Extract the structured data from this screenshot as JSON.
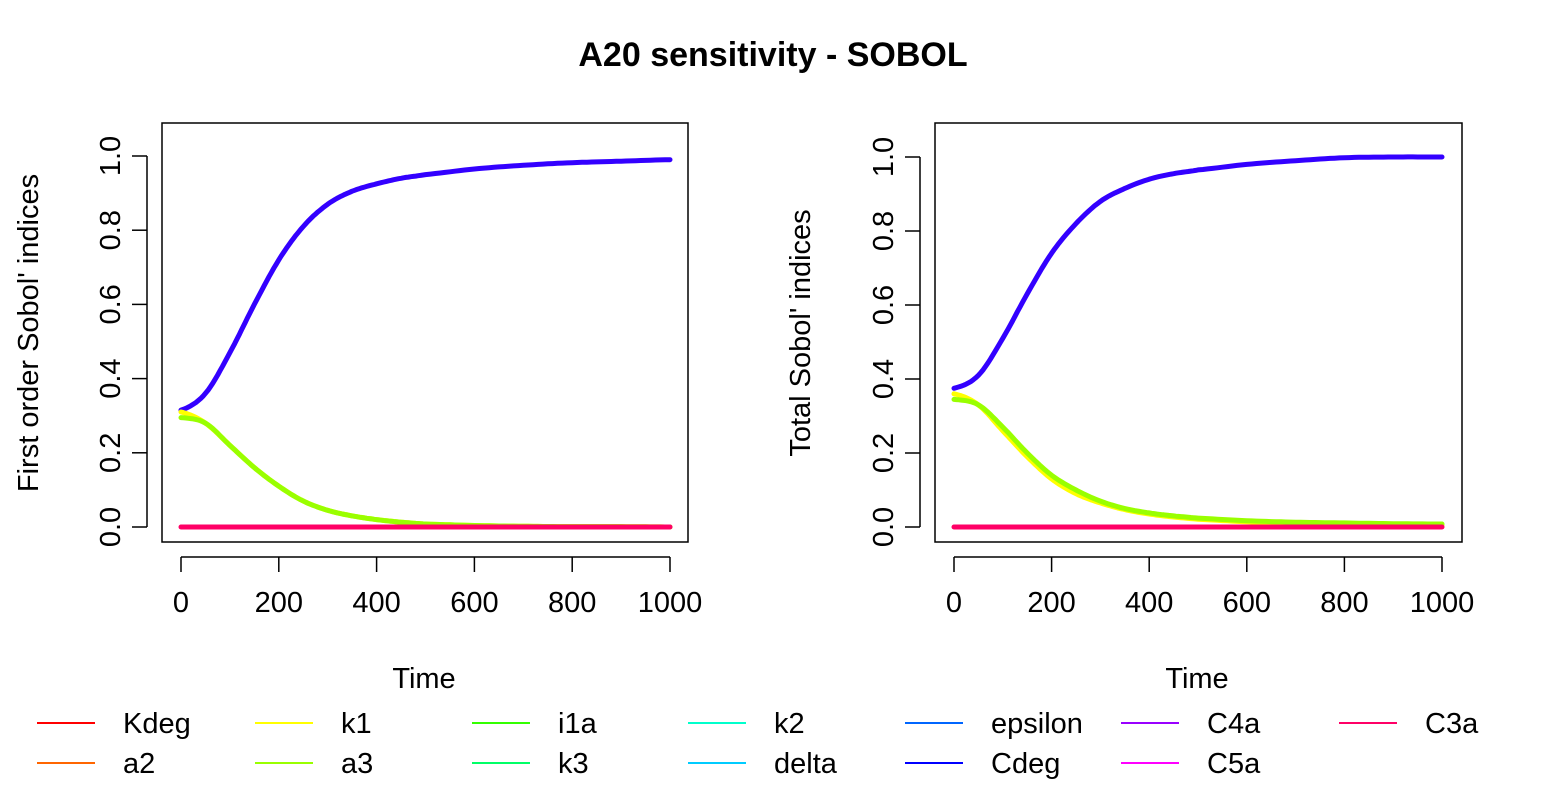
{
  "title": "A20 sensitivity - SOBOL",
  "chart_data": [
    {
      "type": "line",
      "title": "",
      "xlabel": "Time",
      "ylabel": "First order Sobol' indices",
      "xlim": [
        0,
        1000
      ],
      "ylim": [
        0,
        1.0
      ],
      "xticks": [
        "0",
        "200",
        "400",
        "600",
        "800",
        "1000"
      ],
      "yticks": [
        "0.0",
        "0.2",
        "0.4",
        "0.6",
        "0.8",
        "1.0"
      ],
      "x": [
        0,
        50,
        100,
        150,
        200,
        250,
        300,
        350,
        400,
        450,
        500,
        600,
        700,
        800,
        900,
        1000
      ],
      "series": [
        {
          "name": "Cdeg",
          "color": "#3300ff",
          "values": [
            0.315,
            0.36,
            0.47,
            0.6,
            0.72,
            0.81,
            0.87,
            0.905,
            0.925,
            0.94,
            0.95,
            0.965,
            0.975,
            0.982,
            0.986,
            0.99
          ]
        },
        {
          "name": "k1",
          "color": "#ffff00",
          "values": [
            0.31,
            0.28,
            0.22,
            0.16,
            0.11,
            0.07,
            0.045,
            0.03,
            0.02,
            0.013,
            0.008,
            0.004,
            0.002,
            0.001,
            0.001,
            0.0
          ]
        },
        {
          "name": "a3",
          "color": "#99ff00",
          "values": [
            0.295,
            0.28,
            0.22,
            0.16,
            0.11,
            0.07,
            0.045,
            0.03,
            0.02,
            0.013,
            0.008,
            0.004,
            0.002,
            0.001,
            0.001,
            0.0
          ]
        },
        {
          "name": "C3a",
          "color": "#ff0066",
          "values": [
            0,
            0,
            0,
            0,
            0,
            0,
            0,
            0,
            0,
            0,
            0,
            0,
            0,
            0,
            0,
            0
          ]
        }
      ]
    },
    {
      "type": "line",
      "title": "",
      "xlabel": "Time",
      "ylabel": "Total Sobol' indices",
      "xlim": [
        0,
        1000
      ],
      "ylim": [
        0,
        1.0
      ],
      "xticks": [
        "0",
        "200",
        "400",
        "600",
        "800",
        "1000"
      ],
      "yticks": [
        "0.0",
        "0.2",
        "0.4",
        "0.6",
        "0.8",
        "1.0"
      ],
      "x": [
        0,
        50,
        100,
        150,
        200,
        250,
        300,
        350,
        400,
        450,
        500,
        600,
        700,
        800,
        900,
        1000
      ],
      "series": [
        {
          "name": "Cdeg",
          "color": "#3300ff",
          "values": [
            0.375,
            0.41,
            0.51,
            0.63,
            0.74,
            0.82,
            0.88,
            0.915,
            0.94,
            0.955,
            0.965,
            0.98,
            0.99,
            0.998,
            1.0,
            1.0
          ]
        },
        {
          "name": "k1",
          "color": "#ffff00",
          "values": [
            0.36,
            0.33,
            0.26,
            0.19,
            0.13,
            0.09,
            0.065,
            0.047,
            0.035,
            0.027,
            0.021,
            0.014,
            0.01,
            0.008,
            0.006,
            0.005
          ]
        },
        {
          "name": "a3",
          "color": "#99ff00",
          "values": [
            0.345,
            0.33,
            0.27,
            0.2,
            0.14,
            0.1,
            0.07,
            0.05,
            0.038,
            0.03,
            0.024,
            0.017,
            0.013,
            0.011,
            0.009,
            0.008
          ]
        },
        {
          "name": "C3a",
          "color": "#ff0066",
          "values": [
            0,
            0,
            0,
            0,
            0,
            0,
            0,
            0,
            0,
            0,
            0,
            0,
            0,
            0,
            0,
            0
          ]
        }
      ]
    }
  ],
  "legend": {
    "items": [
      {
        "name": "Kdeg",
        "color": "#ff0000"
      },
      {
        "name": "a2",
        "color": "#ff6600"
      },
      {
        "name": "k1",
        "color": "#ffff00"
      },
      {
        "name": "a3",
        "color": "#99ff00"
      },
      {
        "name": "i1a",
        "color": "#33ff00"
      },
      {
        "name": "k3",
        "color": "#00ff66"
      },
      {
        "name": "k2",
        "color": "#00ffcc"
      },
      {
        "name": "delta",
        "color": "#00ccff"
      },
      {
        "name": "epsilon",
        "color": "#0066ff"
      },
      {
        "name": "Cdeg",
        "color": "#0000ff"
      },
      {
        "name": "C4a",
        "color": "#9900ff"
      },
      {
        "name": "C5a",
        "color": "#ff00ff"
      },
      {
        "name": "C3a",
        "color": "#ff0066"
      }
    ]
  }
}
